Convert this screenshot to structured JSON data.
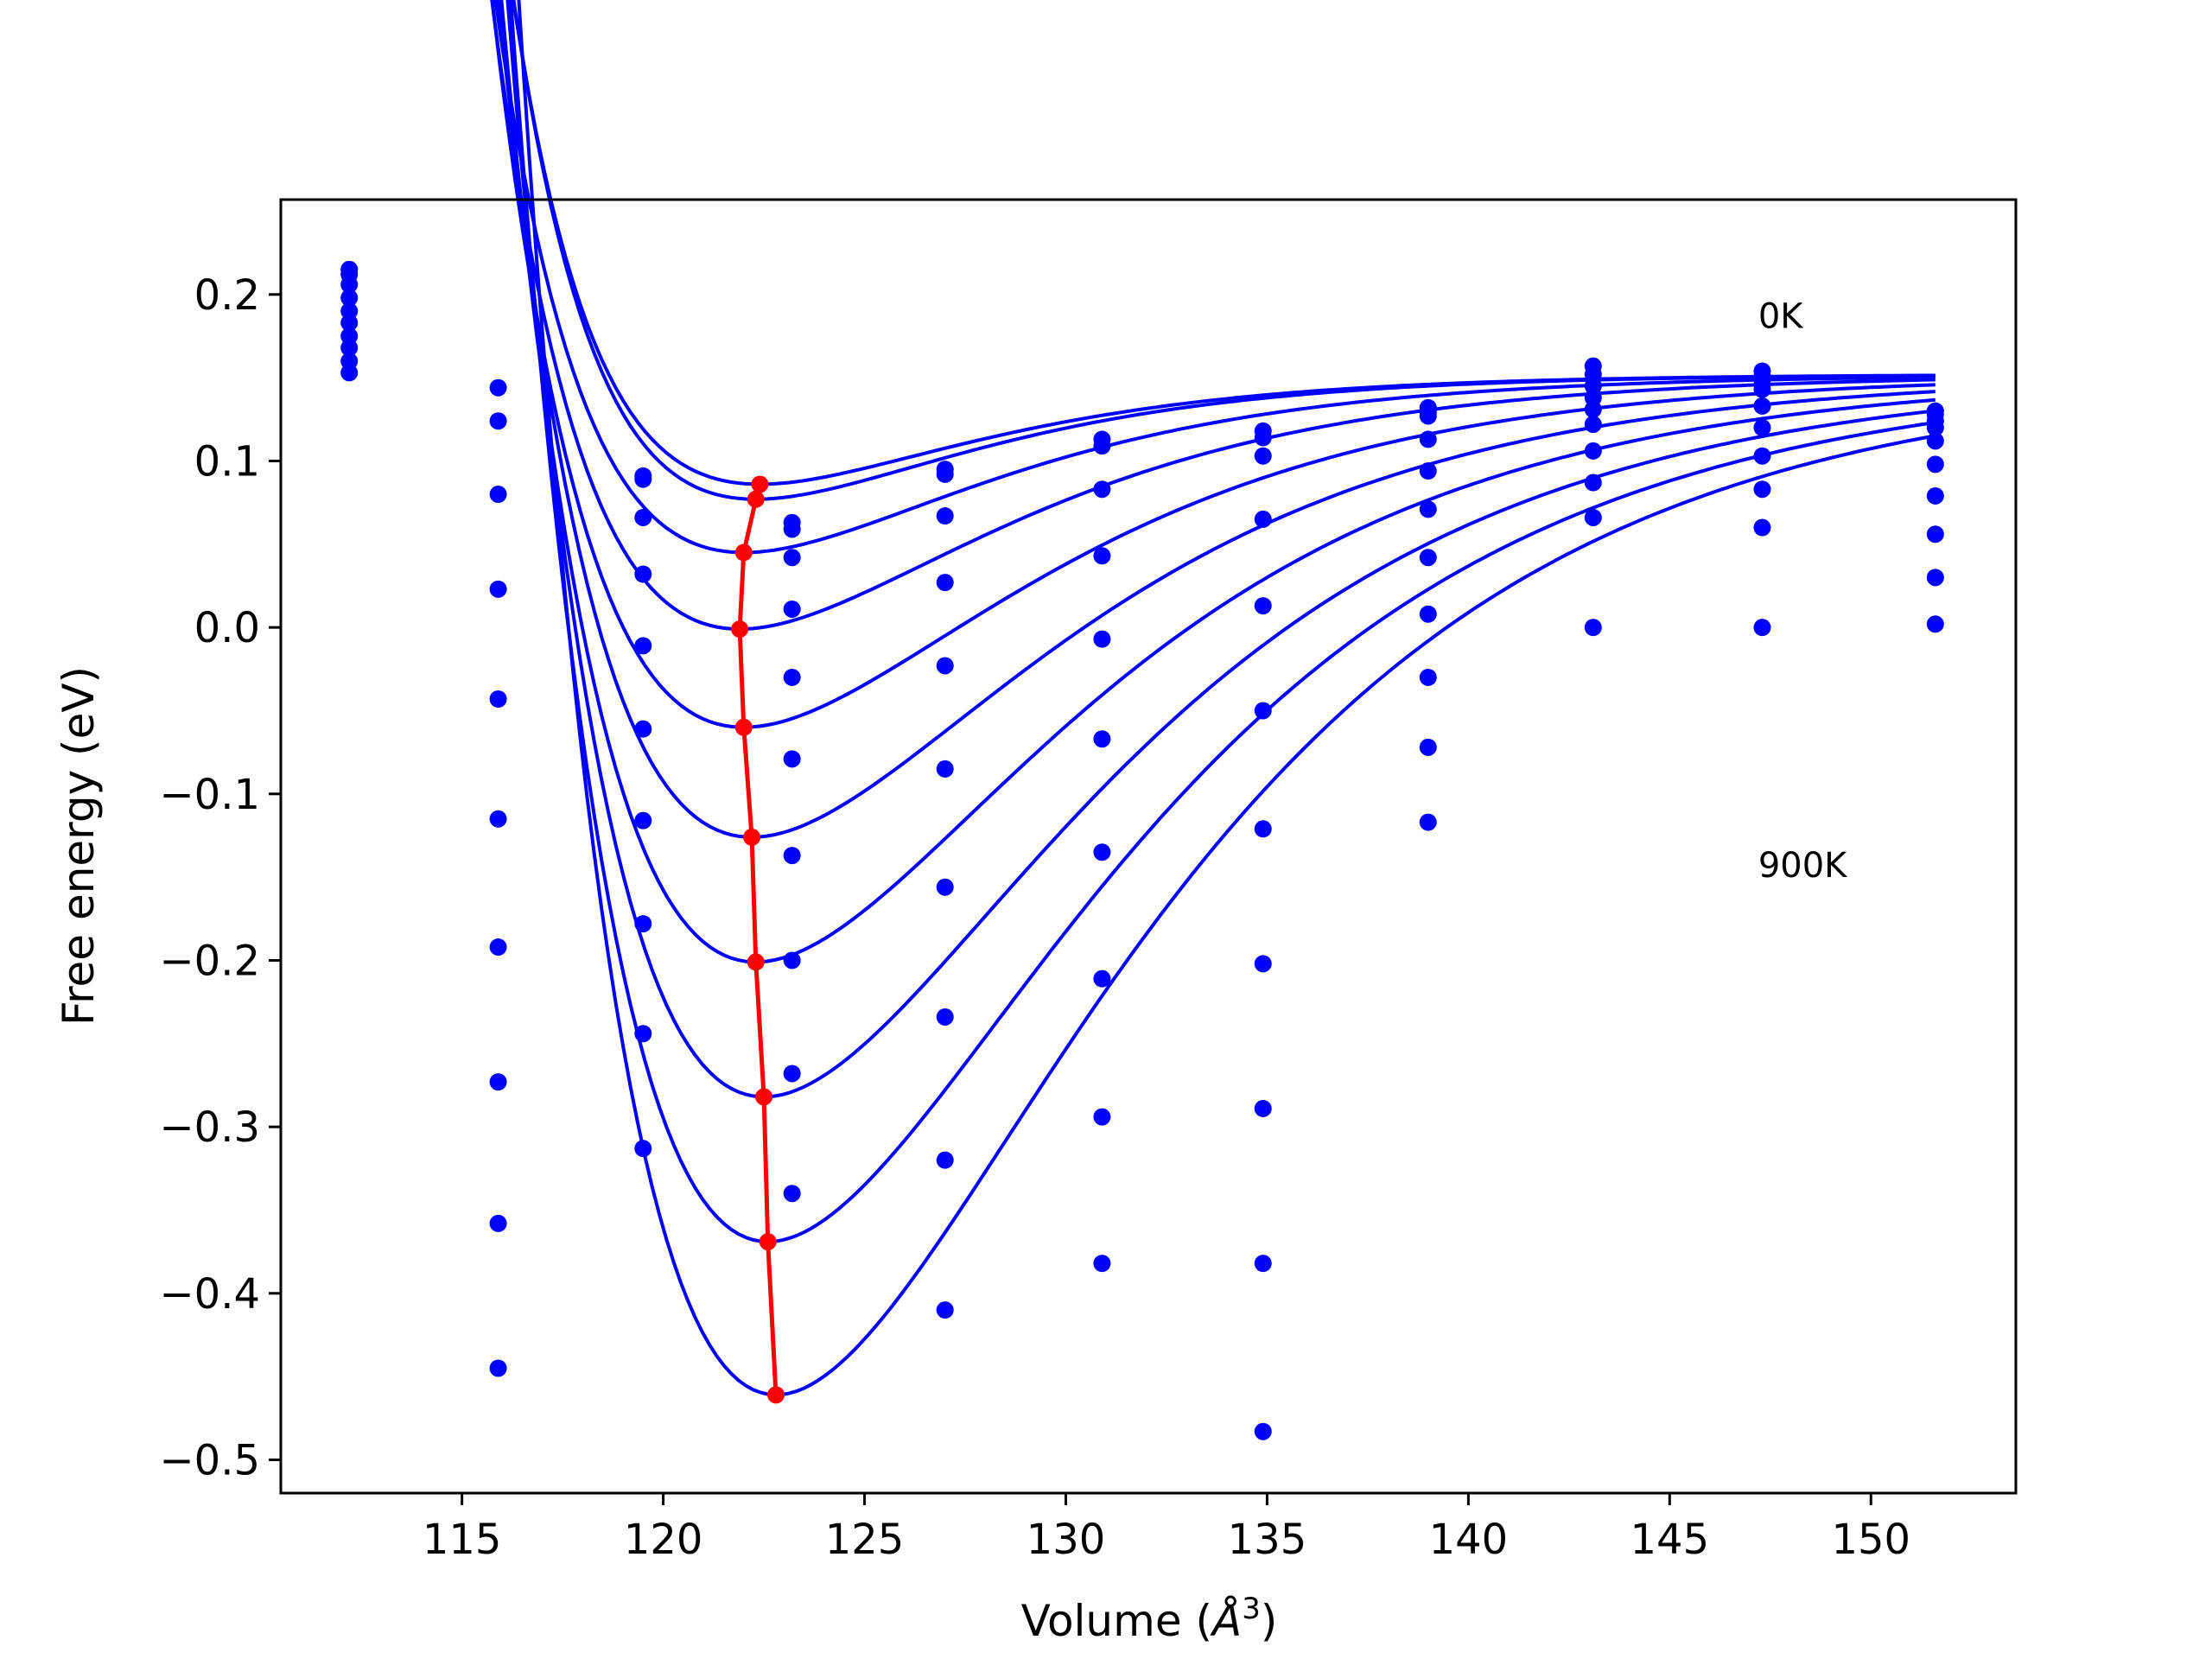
{
  "chart_data": {
    "type": "scatter",
    "title": "",
    "xlabel": "Volume (",
    "xlabel_unit_symbol": "Å",
    "xlabel_unit_power": "3",
    "xlabel_close": ")",
    "ylabel": "Free energy (eV)",
    "xlim": [
      110.5,
      153.6
    ],
    "ylim": [
      -0.52,
      0.257
    ],
    "xticks": [
      115,
      120,
      125,
      130,
      135,
      140,
      145,
      150
    ],
    "yticks": [
      -0.5,
      -0.4,
      -0.3,
      -0.2,
      -0.1,
      0.0,
      0.1,
      0.2
    ],
    "ytick_labels": [
      "−0.5",
      "−0.4",
      "−0.3",
      "−0.2",
      "−0.1",
      "0.0",
      "0.1",
      "0.2"
    ],
    "xtick_labels": [
      "115",
      "120",
      "125",
      "130",
      "135",
      "140",
      "145",
      "150"
    ],
    "annotations": [
      {
        "text": "0K",
        "x": 147.2,
        "y": 0.18
      },
      {
        "text": "900K",
        "x": 147.2,
        "y": -0.15
      }
    ],
    "curve_color": "#0000ff",
    "minima_color": "#ff0000",
    "volumes": [
      112.2,
      115.9,
      119.5,
      123.2,
      127.0,
      130.9,
      134.9,
      139.0,
      143.1,
      147.3,
      151.6
    ],
    "series": [
      {
        "values": [
          0.215,
          0.144,
          0.091,
          0.063,
          0.095,
          0.113,
          0.118,
          0.132,
          0.157,
          0.154,
          0.13
        ]
      },
      {
        "values": [
          0.215,
          0.124,
          0.089,
          0.059,
          0.092,
          0.109,
          0.114,
          0.129,
          0.152,
          0.151,
          0.128
        ]
      },
      {
        "values": [
          0.212,
          0.08,
          0.066,
          0.042,
          0.067,
          0.083,
          0.103,
          0.127,
          0.145,
          0.146,
          0.124
        ]
      },
      {
        "values": [
          0.206,
          0.023,
          0.032,
          0.011,
          0.027,
          0.043,
          0.065,
          0.113,
          0.138,
          0.143,
          0.12
        ]
      },
      {
        "values": [
          0.198,
          -0.043,
          -0.011,
          -0.03,
          -0.023,
          -0.007,
          0.013,
          0.094,
          0.131,
          0.133,
          0.112
        ]
      },
      {
        "values": [
          0.19,
          -0.115,
          -0.061,
          -0.079,
          -0.085,
          -0.067,
          -0.05,
          0.071,
          0.122,
          0.12,
          0.098
        ]
      },
      {
        "values": [
          0.183,
          -0.192,
          -0.116,
          -0.137,
          -0.156,
          -0.135,
          -0.121,
          0.042,
          0.106,
          0.103,
          0.079
        ]
      },
      {
        "values": [
          0.175,
          -0.273,
          -0.178,
          -0.2,
          -0.234,
          -0.211,
          -0.202,
          0.008,
          0.087,
          0.083,
          0.056
        ]
      },
      {
        "values": [
          0.168,
          -0.358,
          -0.244,
          -0.268,
          -0.32,
          -0.294,
          -0.289,
          -0.03,
          0.066,
          0.06,
          0.03
        ]
      },
      {
        "values": [
          0.16,
          -0.445,
          -0.313,
          -0.34,
          -0.41,
          -0.382,
          -0.382,
          -0.072,
          0.0,
          0.0,
          0.002
        ]
      },
      {
        "values": [
          0.153,
          null,
          null,
          null,
          null,
          null,
          -0.483,
          -0.117,
          null,
          null,
          null
        ]
      }
    ],
    "fit_curves": [
      {
        "v0": 122.4,
        "e0": 0.086,
        "b": 0.00225,
        "ex": 0.152
      },
      {
        "v0": 122.3,
        "e0": 0.077,
        "b": 0.0025,
        "ex": 0.152
      },
      {
        "v0": 122.0,
        "e0": 0.045,
        "b": 0.0029,
        "ex": 0.152
      },
      {
        "v0": 121.9,
        "e0": -0.001,
        "b": 0.0036,
        "ex": 0.152
      },
      {
        "v0": 122.0,
        "e0": -0.06,
        "b": 0.0043,
        "ex": 0.152
      },
      {
        "v0": 122.2,
        "e0": -0.126,
        "b": 0.0051,
        "ex": 0.152
      },
      {
        "v0": 122.3,
        "e0": -0.201,
        "b": 0.006,
        "ex": 0.152
      },
      {
        "v0": 122.5,
        "e0": -0.282,
        "b": 0.0069,
        "ex": 0.152
      },
      {
        "v0": 122.6,
        "e0": -0.369,
        "b": 0.0079,
        "ex": 0.152
      },
      {
        "v0": 122.8,
        "e0": -0.461,
        "b": 0.009,
        "ex": 0.152
      }
    ],
    "minima": {
      "x": [
        122.4,
        122.3,
        122.0,
        121.9,
        122.0,
        122.2,
        122.3,
        122.5,
        122.6,
        122.8
      ],
      "y": [
        0.086,
        0.077,
        0.045,
        -0.001,
        -0.06,
        -0.126,
        -0.201,
        -0.282,
        -0.369,
        -0.461
      ]
    }
  }
}
